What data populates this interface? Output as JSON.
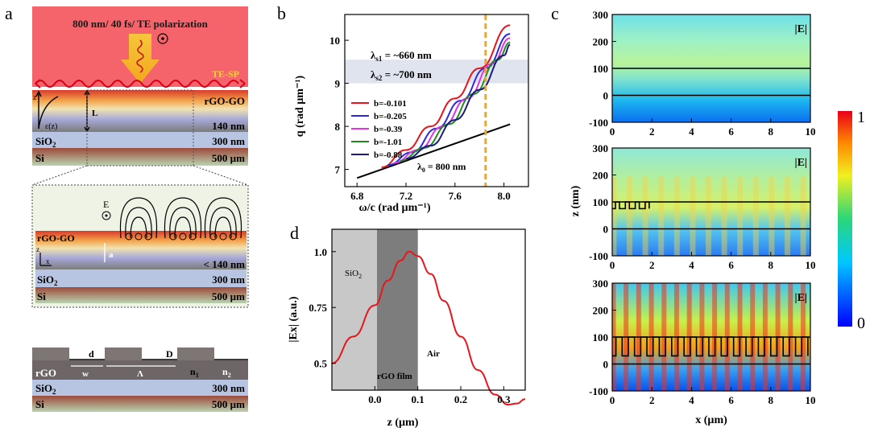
{
  "panel_a": {
    "letter": "a",
    "laser_label": "800 nm/ 40 fs/ TE polarization",
    "te_sp_label": "TE-SP",
    "film_label": "rGO-GO",
    "thickness_label": "140 nm",
    "sio2_label": "SiO",
    "sio2_sub": "2",
    "sio2_thickness": "300 nm",
    "si_label": "Si",
    "si_thickness": "500 µm",
    "z_axis": "z",
    "eps_label": "ε(z)",
    "L_label": "L",
    "zoom_E_label": "E",
    "zoom_film_label": "rGO-GO",
    "zoom_a_label": "a",
    "zoom_z_label": "z",
    "zoom_x_label": "x",
    "zoom_thickness": "< 140 nm",
    "grating_rgo": "rGO",
    "grating_d": "d",
    "grating_D": "D",
    "grating_w": "w",
    "grating_Lambda": "Λ",
    "grating_n1": "n",
    "grating_n1_sub": "1",
    "grating_n2": "n",
    "grating_n2_sub": "2",
    "colors": {
      "laser": "#f5646a",
      "arrow": "#f2c12e",
      "te_sp": "#e0001a"
    }
  },
  "panel_b": {
    "letter": "b",
    "band1": "λ",
    "band1_sub": "s1",
    "band1_val": " = ~660 nm",
    "band2": "λ",
    "band2_sub": "s2",
    "band2_val": " = ~700 nm",
    "lambda0": "λ",
    "lambda0_sub": "0",
    "lambda0_val": " = 800 nm",
    "chart_data": {
      "type": "line",
      "xlabel": "ω/c (rad µm⁻¹)",
      "ylabel": "q (rad µm⁻¹)",
      "xlim": [
        6.7,
        8.2
      ],
      "ylim": [
        6.6,
        10.6
      ],
      "xticks": [
        "6.8",
        "7.2",
        "7.6",
        "8.0"
      ],
      "yticks": [
        "7",
        "8",
        "9",
        "10"
      ],
      "series": [
        {
          "name": "b=-0.101",
          "color": "#e8161b",
          "x": [
            7.0,
            7.2,
            7.4,
            7.6,
            7.8,
            8.05
          ],
          "y": [
            7.05,
            7.45,
            8.0,
            8.65,
            9.35,
            10.35
          ]
        },
        {
          "name": "b=-0.205",
          "color": "#2a2ae0",
          "x": [
            7.05,
            7.25,
            7.45,
            7.65,
            7.85,
            8.05
          ],
          "y": [
            7.1,
            7.4,
            7.95,
            8.6,
            9.35,
            10.15
          ]
        },
        {
          "name": "b=-0.39",
          "color": "#e533e5",
          "x": [
            7.1,
            7.3,
            7.5,
            7.7,
            7.9,
            8.05
          ],
          "y": [
            7.15,
            7.45,
            8.0,
            8.65,
            9.45,
            10.05
          ]
        },
        {
          "name": "b=-1.01",
          "color": "#1f8a1f",
          "x": [
            7.15,
            7.35,
            7.55,
            7.75,
            7.95,
            8.05
          ],
          "y": [
            7.2,
            7.5,
            8.05,
            8.75,
            9.55,
            9.95
          ]
        },
        {
          "name": "b=-0.88",
          "color": "#1a1a80",
          "x": [
            7.2,
            7.4,
            7.6,
            7.8,
            8.0,
            8.05
          ],
          "y": [
            7.25,
            7.55,
            8.15,
            8.85,
            9.65,
            9.9
          ]
        }
      ],
      "light_line": {
        "x": [
          6.8,
          8.05
        ],
        "y": [
          6.8,
          8.05
        ],
        "color": "#000000"
      },
      "laser_line_x": 7.85,
      "band_y": [
        9.0,
        9.55
      ]
    }
  },
  "panel_c": {
    "letter": "c",
    "field_label": "|E|",
    "ylabel": "z (nm)",
    "xlabel": "x (µm)",
    "xticks": [
      "0",
      "2",
      "4",
      "6",
      "8",
      "10"
    ],
    "yticks": [
      "300",
      "200",
      "100",
      "0",
      "-100"
    ],
    "colorbar_max": "1",
    "colorbar_min": "0"
  },
  "panel_d": {
    "letter": "d",
    "region_sio2": "SiO",
    "region_sio2_sub": "2",
    "region_rgo": "rGO film",
    "region_air": "Air",
    "chart_data": {
      "type": "line",
      "xlabel": "z (µm)",
      "ylabel": "|Ex| (a.u.)",
      "xlim": [
        -0.1,
        0.35
      ],
      "ylim": [
        0.38,
        1.1
      ],
      "xticks": [
        "0.0",
        "0.1",
        "0.2",
        "0.3"
      ],
      "yticks": [
        "0.5",
        "0.75",
        "1.0"
      ],
      "series": [
        {
          "name": "",
          "color": "#e8161b",
          "x": [
            -0.1,
            -0.05,
            0.0,
            0.03,
            0.06,
            0.08,
            0.1,
            0.13,
            0.16,
            0.2,
            0.24,
            0.28,
            0.31,
            0.33,
            0.35
          ],
          "y": [
            0.5,
            0.62,
            0.76,
            0.87,
            0.96,
            1.0,
            0.98,
            0.9,
            0.78,
            0.62,
            0.47,
            0.36,
            0.315,
            0.32,
            0.34
          ]
        }
      ],
      "regions": [
        {
          "from": -0.1,
          "to": 0.005
        },
        {
          "from": 0.005,
          "to": 0.1
        }
      ]
    }
  }
}
